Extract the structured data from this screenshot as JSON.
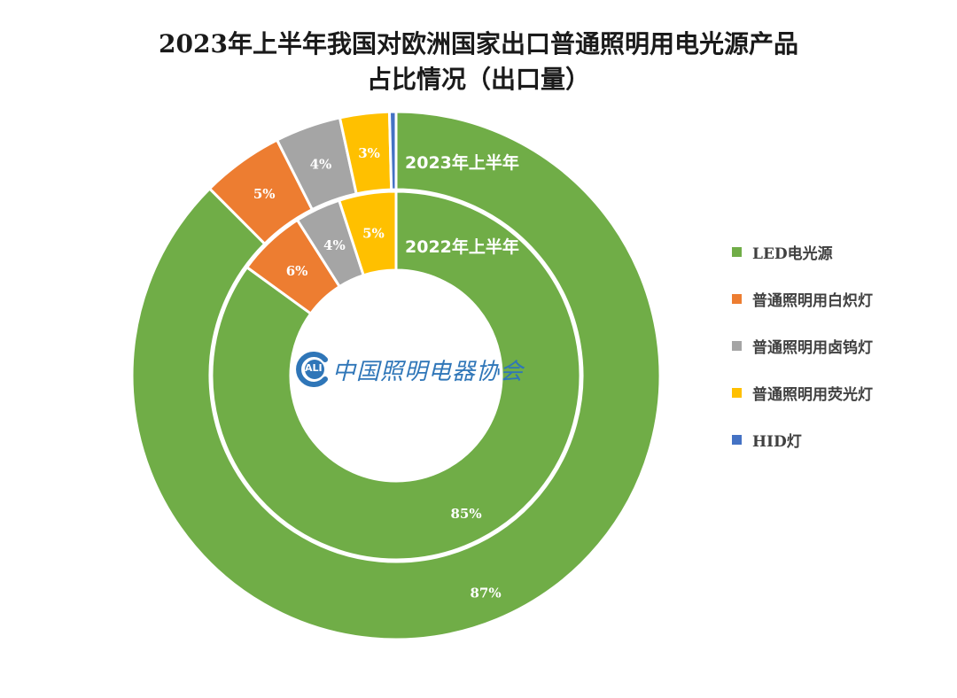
{
  "title_line1": "2023年上半年我国对欧洲国家出口普通照明用电光源产品",
  "title_line2": "占比情况（出口量）",
  "logo": {
    "mark_text": "ALI",
    "org_name": "中国照明电器协会"
  },
  "chart_data": {
    "type": "donut",
    "categories": [
      "LED电光源",
      "普通照明用白炽灯",
      "普通照明用卤钨灯",
      "普通照明用荧光灯",
      "HID灯"
    ],
    "colors": [
      "#70ad47",
      "#ed7d31",
      "#a5a5a5",
      "#ffc000",
      "#4472c4"
    ],
    "legend_position": "right",
    "series": [
      {
        "name": "2023年上半年",
        "values": [
          87,
          5,
          4,
          3,
          0.4
        ],
        "labels": [
          "87%",
          "5%",
          "4%",
          "3%",
          ""
        ]
      },
      {
        "name": "2022年上半年",
        "values": [
          85,
          6,
          4,
          5,
          0
        ],
        "labels": [
          "85%",
          "6%",
          "4%",
          "5%",
          ""
        ]
      }
    ]
  }
}
